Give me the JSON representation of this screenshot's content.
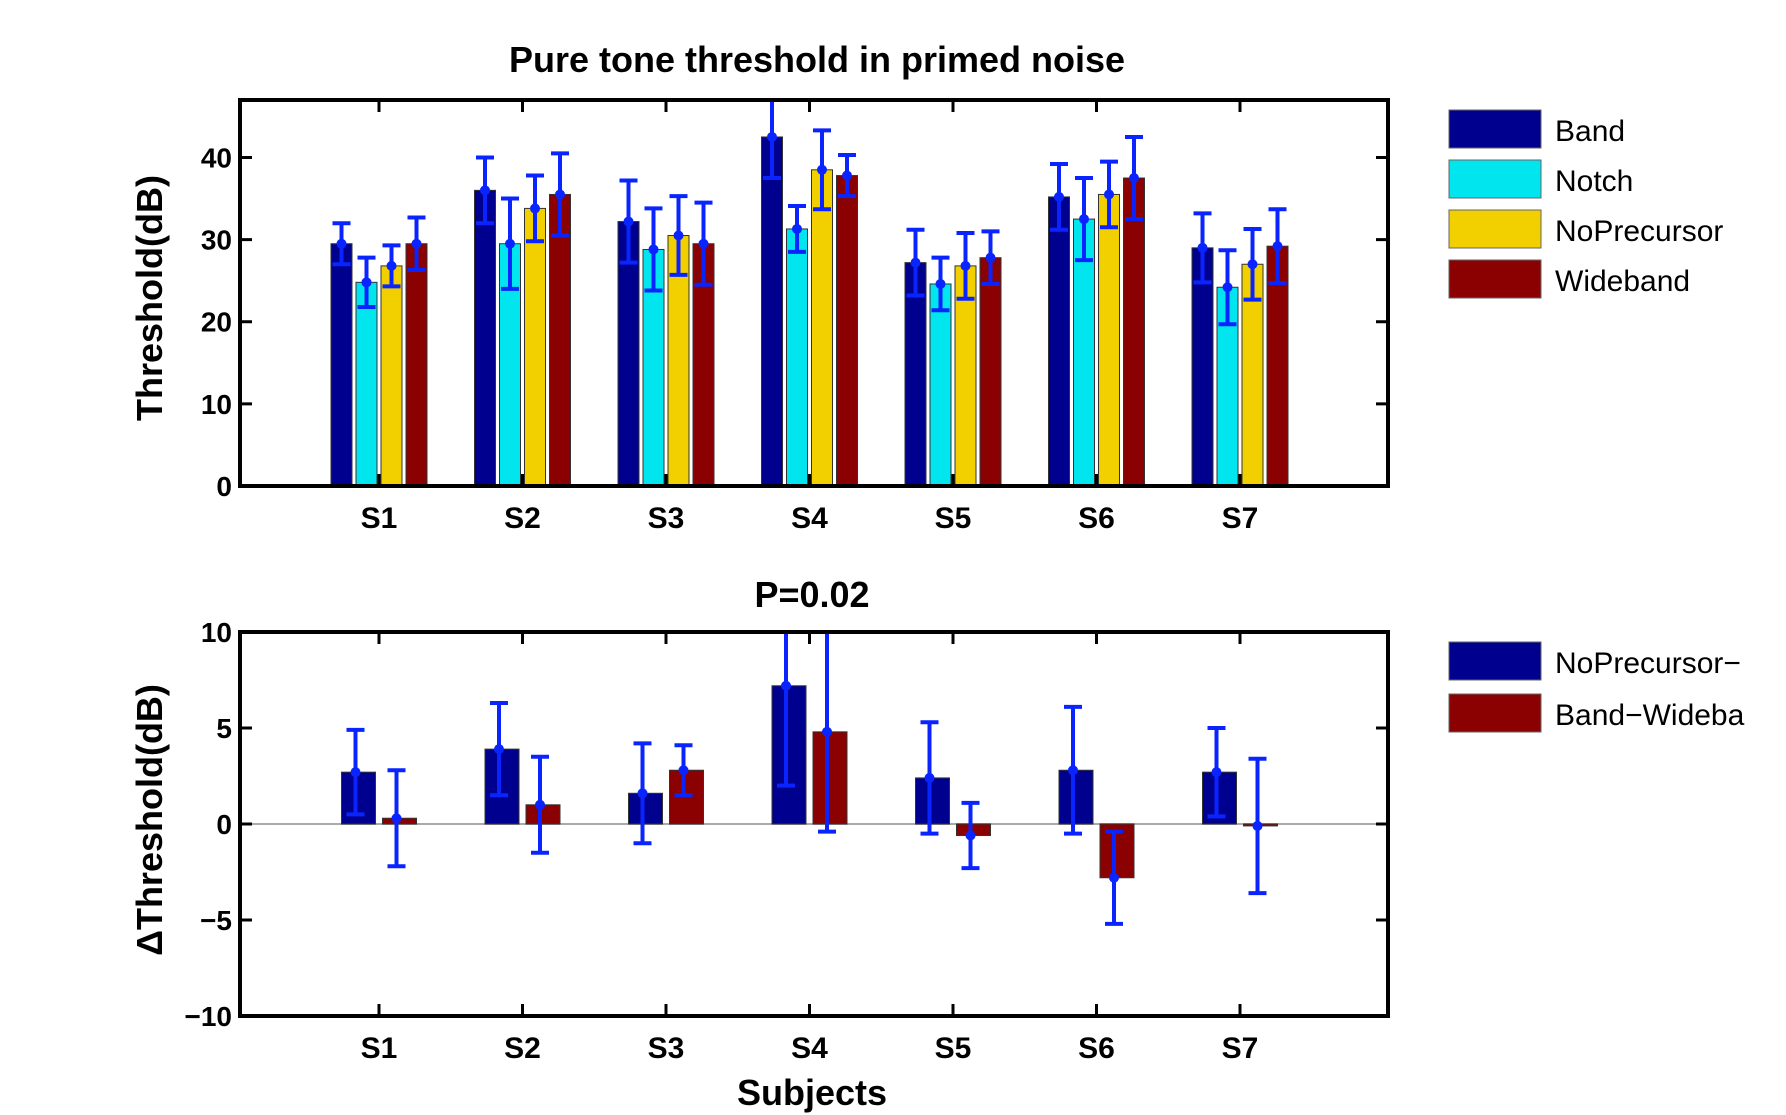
{
  "colors": {
    "band": "#00008f",
    "notch": "#00e5ee",
    "noprecursor": "#f2d000",
    "wideband": "#8b0000",
    "errorbar": "#0a24ff",
    "zero_line": "#aaaaaa"
  },
  "chart_data": [
    {
      "type": "bar",
      "title": "Pure tone threshold in primed noise",
      "xlabel": "",
      "ylabel": "Threshold(dB)",
      "ylim": [
        0,
        47
      ],
      "yticks": [
        "0",
        "10",
        "20",
        "30",
        "40"
      ],
      "categories": [
        "S1",
        "S2",
        "S3",
        "S4",
        "S5",
        "S6",
        "S7"
      ],
      "legend_position": "right",
      "series": [
        {
          "name": "Band",
          "values": [
            29.5,
            36,
            32.2,
            42.5,
            27.2,
            35.2,
            29
          ],
          "errors": [
            2.5,
            4,
            5,
            5,
            4,
            4,
            4.2
          ]
        },
        {
          "name": "Notch",
          "values": [
            24.8,
            29.5,
            28.8,
            31.3,
            24.6,
            32.5,
            24.2
          ],
          "errors": [
            3,
            5.5,
            5,
            2.8,
            3.2,
            5,
            4.5
          ]
        },
        {
          "name": "NoPrecursor",
          "values": [
            26.8,
            33.8,
            30.5,
            38.5,
            26.8,
            35.5,
            27
          ],
          "errors": [
            2.5,
            4,
            4.8,
            4.8,
            4,
            4,
            4.3
          ]
        },
        {
          "name": "Wideband",
          "values": [
            29.5,
            35.5,
            29.5,
            37.8,
            27.8,
            37.5,
            29.2
          ],
          "errors": [
            3.2,
            5,
            5,
            2.5,
            3.2,
            5,
            4.5
          ]
        }
      ]
    },
    {
      "type": "bar",
      "title": "P=0.02",
      "xlabel": "Subjects",
      "ylabel": "ΔThreshold(dB)",
      "ylim": [
        -10,
        10
      ],
      "yticks": [
        "−10",
        "−5",
        "0",
        "5",
        "10"
      ],
      "categories": [
        "S1",
        "S2",
        "S3",
        "S4",
        "S5",
        "S6",
        "S7"
      ],
      "legend_position": "right",
      "series": [
        {
          "name": "NoPrecursor−",
          "values": [
            2.7,
            3.9,
            1.6,
            7.2,
            2.4,
            2.8,
            2.7
          ],
          "errors": [
            2.2,
            2.4,
            2.6,
            5.2,
            2.9,
            3.3,
            2.3
          ]
        },
        {
          "name": "Band−Wideba",
          "values": [
            0.3,
            1.0,
            2.8,
            4.8,
            -0.6,
            -2.8,
            -0.1
          ],
          "errors": [
            2.5,
            2.5,
            1.3,
            5.2,
            1.7,
            2.4,
            3.5
          ]
        }
      ]
    }
  ]
}
